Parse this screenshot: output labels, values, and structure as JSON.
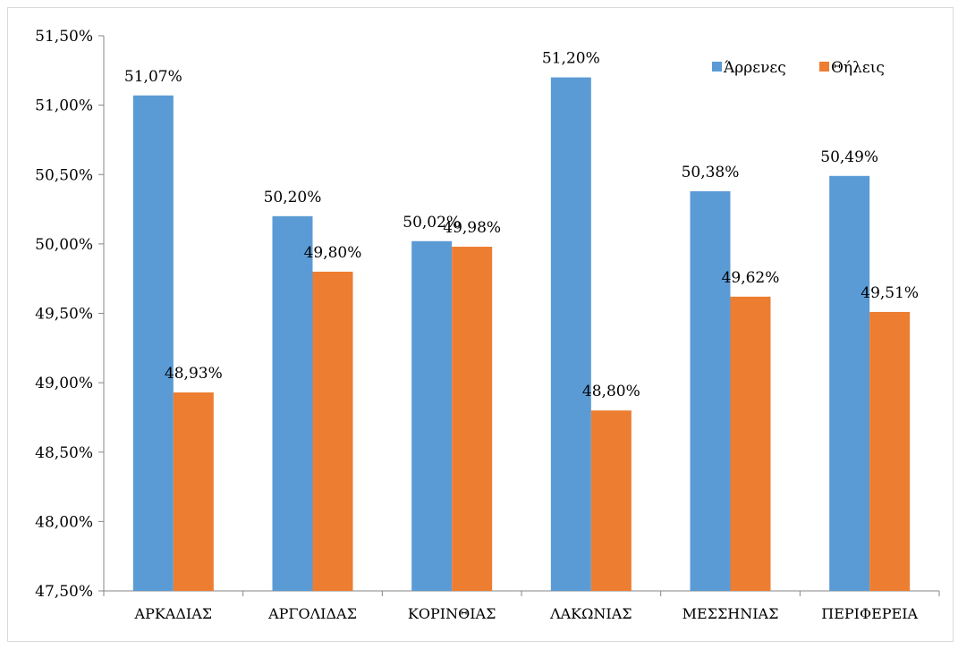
{
  "chart_data": {
    "type": "bar",
    "title": "",
    "xlabel": "",
    "ylabel": "",
    "categories": [
      "ΑΡΚΑΔΙΑΣ",
      "ΑΡΓΟΛΙΔΑΣ",
      "ΚΟΡΙΝΘΙΑΣ",
      "ΛΑΚΩΝΙΑΣ",
      "ΜΕΣΣΗΝΙΑΣ",
      "ΠΕΡΙΦΕΡΕΙΑ"
    ],
    "series": [
      {
        "name": "Άρρενες",
        "color": "#5b9bd5",
        "values": [
          51.07,
          50.2,
          50.02,
          51.2,
          50.38,
          50.49
        ],
        "labels": [
          "51,07%",
          "50,20%",
          "50,02%",
          "51,20%",
          "50,38%",
          "50,49%"
        ]
      },
      {
        "name": "Θήλεις",
        "color": "#ed7d31",
        "values": [
          48.93,
          49.8,
          49.98,
          48.8,
          49.62,
          49.51
        ],
        "labels": [
          "48,93%",
          "49,80%",
          "49,98%",
          "48,80%",
          "49,62%",
          "49,51%"
        ]
      }
    ],
    "ylim": [
      47.5,
      51.5
    ],
    "yticks": [
      47.5,
      48.0,
      48.5,
      49.0,
      49.5,
      50.0,
      50.5,
      51.0,
      51.5
    ],
    "ytick_labels": [
      "47,50%",
      "48,00%",
      "48,50%",
      "49,00%",
      "49,50%",
      "50,00%",
      "50,50%",
      "51,00%",
      "51,50%"
    ],
    "grid": false,
    "legend_position": "top-right"
  }
}
